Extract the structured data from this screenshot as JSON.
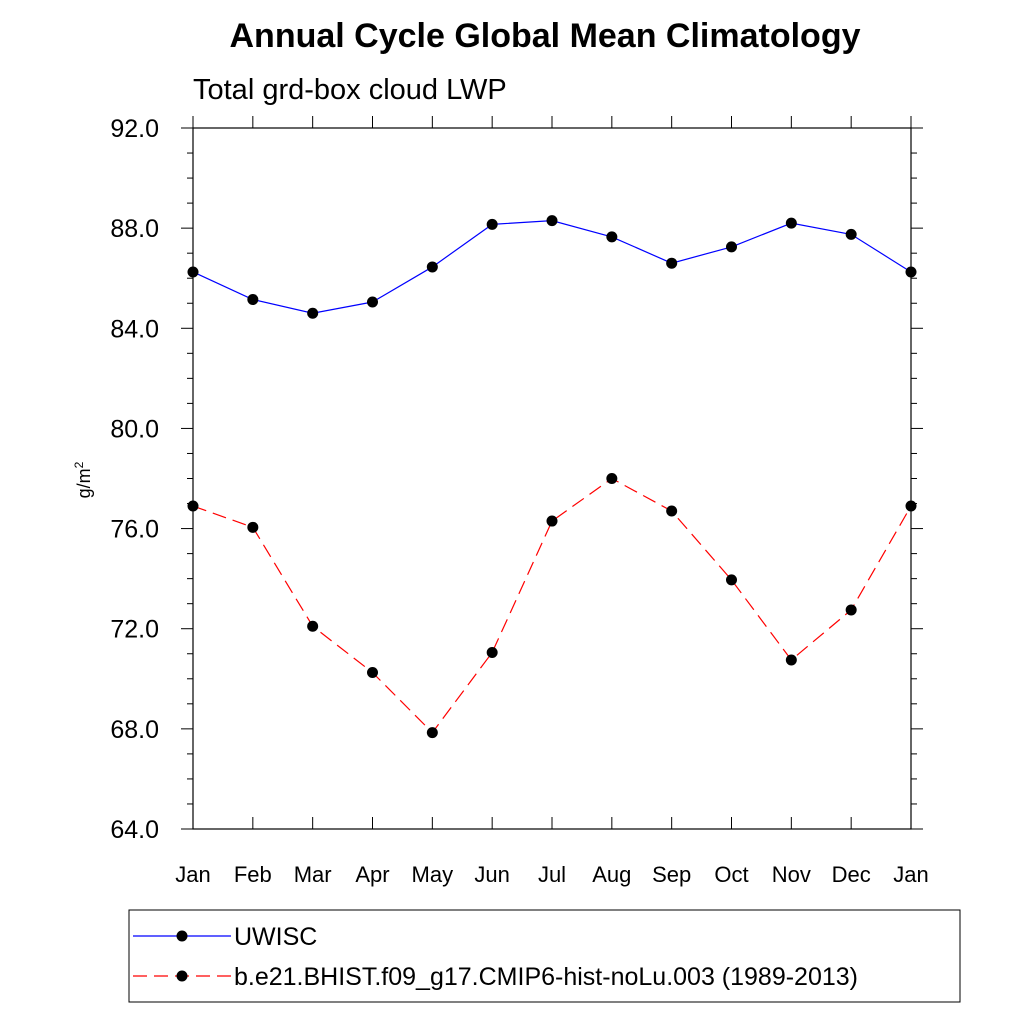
{
  "chart_data": {
    "type": "line",
    "title": "Annual Cycle Global Mean Climatology",
    "subtitle": "Total grd-box cloud LWP",
    "xlabel": "",
    "ylabel": "g/m",
    "ylabel_superscript": "2",
    "categories": [
      "Jan",
      "Feb",
      "Mar",
      "Apr",
      "May",
      "Jun",
      "Jul",
      "Aug",
      "Sep",
      "Oct",
      "Nov",
      "Dec",
      "Jan"
    ],
    "ylim": [
      64.0,
      92.0
    ],
    "yticks": [
      "64.0",
      "68.0",
      "72.0",
      "76.0",
      "80.0",
      "84.0",
      "88.0",
      "92.0"
    ],
    "grid": false,
    "legend_position": "bottom",
    "series": [
      {
        "name": "UWISC",
        "color": "#0000ff",
        "dash": "solid",
        "marker": "circle",
        "values": [
          86.25,
          85.15,
          84.6,
          85.05,
          86.45,
          88.15,
          88.3,
          87.65,
          86.6,
          87.25,
          88.2,
          87.75,
          86.25
        ]
      },
      {
        "name": "b.e21.BHIST.f09_g17.CMIP6-hist-noLu.003 (1989-2013)",
        "color": "#ff0000",
        "dash": "dashed",
        "marker": "circle",
        "values": [
          76.9,
          76.05,
          72.1,
          70.25,
          67.85,
          71.05,
          76.3,
          78.0,
          76.7,
          73.95,
          70.75,
          72.75,
          76.9
        ]
      }
    ]
  }
}
